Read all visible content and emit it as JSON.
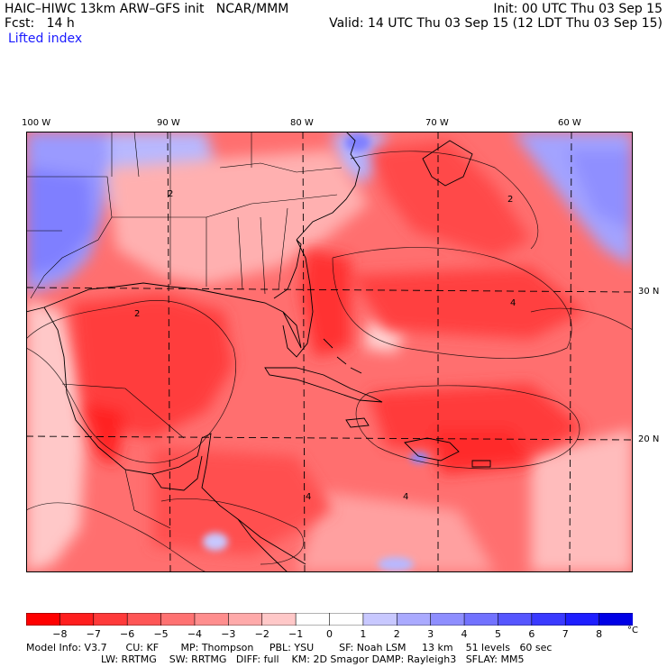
{
  "header": {
    "title": "HAIC–HIWC 13km ARW–GFS init   NCAR/MMM",
    "forecast": "Fcst:   14 h",
    "field": "Lifted index",
    "init": "Init: 00 UTC Thu 03 Sep 15",
    "valid": "Valid: 14 UTC Thu 03 Sep 15 (12 LDT Thu 03 Sep 15)"
  },
  "map": {
    "longitude_labels": [
      "100 W",
      "90 W",
      "80 W",
      "70 W",
      "60 W"
    ],
    "latitude_labels": [
      "30 N",
      "20 N"
    ],
    "contour_labels": [
      "2",
      "4",
      "2",
      "4",
      "4",
      "2"
    ]
  },
  "colorbar": {
    "levels": [
      "−8",
      "−7",
      "−6",
      "−5",
      "−4",
      "−3",
      "−2",
      "−1",
      "0",
      "1",
      "2",
      "3",
      "4",
      "5",
      "6",
      "7",
      "8"
    ],
    "unit": "°C",
    "colors": [
      "#ff0000",
      "#ff1e1e",
      "#ff3a3a",
      "#ff5656",
      "#ff7272",
      "#ff8e8e",
      "#ffaaaa",
      "#ffc8c8",
      "#ffffff",
      "#ffffff",
      "#c8c8ff",
      "#aaaaff",
      "#8e8eff",
      "#7272ff",
      "#5656ff",
      "#3a3aff",
      "#1e1eff",
      "#0000e6"
    ]
  },
  "footer": {
    "line1": "Model Info: V3.7      CU: KF       MP: Thompson     PBL: YSU        SF: Noah LSM     13 km    51 levels   60 sec",
    "line2": "LW: RRTMG    SW: RRTMG   DIFF: full    KM: 2D Smagor DAMP: Rayleigh3   SFLAY: MM5"
  }
}
